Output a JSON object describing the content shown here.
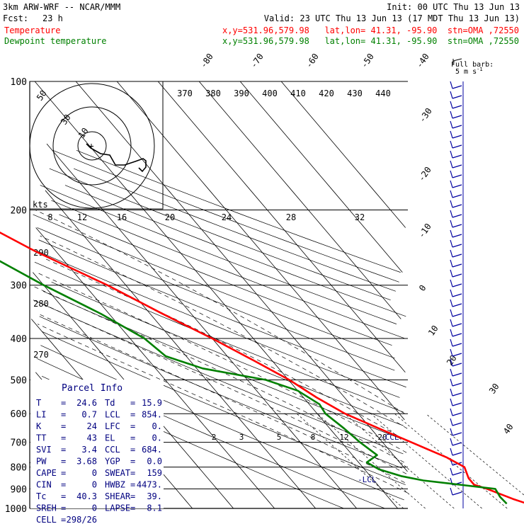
{
  "header": {
    "model": "3km ARW-WRF -- NCAR/MMM",
    "init": "Init: 00 UTC Thu 13 Jun 13",
    "fcst_label": "Fcst:",
    "fcst_value": "23 h",
    "valid": "Valid: 23 UTC Thu 13 Jun 13 (17 MDT Thu 13 Jun 13)",
    "temp_label": "Temperature",
    "temp_info": "x,y=531.96,579.98   lat,lon= 41.31, -95.90  stn=OMA ,72550",
    "dew_label": "Dewpoint temperature",
    "dew_info": "x,y=531.96,579.98   lat,lon= 41.31, -95.90  stn=OMA ,72550"
  },
  "barb_legend": {
    "line1": "Full barb:",
    "line2": "5 m s",
    "sup": "-1"
  },
  "colors": {
    "temperature": "#ff0000",
    "dewpoint": "#008000",
    "header_text": "#000000",
    "info_text": "#000080"
  },
  "parcel_info": {
    "title": "Parcel Info",
    "rows": [
      [
        "T",
        "=",
        "24.6",
        "Td",
        "=",
        "15.9"
      ],
      [
        "LI",
        "=",
        "0.7",
        "LCL",
        "=",
        "854."
      ],
      [
        "K",
        "=",
        "24",
        "LFC",
        "=",
        "0."
      ],
      [
        "TT",
        "=",
        "43",
        "EL",
        "=",
        "0."
      ],
      [
        "SVI",
        "=",
        "3.4",
        "CCL",
        "=",
        "684."
      ],
      [
        "PW",
        "=",
        "3.68",
        "YGP",
        "=",
        "0.0"
      ],
      [
        "CAPE",
        "=",
        "0",
        "SWEAT",
        "=",
        "159"
      ],
      [
        "CIN",
        "=",
        "0",
        "HWBZ",
        "=",
        "4473."
      ],
      [
        "Tc",
        "=",
        "40.3",
        "SHEAR",
        "=",
        "39."
      ],
      [
        "SREH",
        "=",
        "0",
        "LAPSE",
        "=",
        "8.1"
      ],
      [
        "CELL",
        "=",
        "298/26",
        "",
        "",
        ""
      ]
    ]
  },
  "annotations": {
    "ccl": "-CCL",
    "lcl": "-LCL"
  },
  "chart_data": {
    "type": "line",
    "diagram": "skew-T log-p",
    "y_axis": {
      "scale": "log",
      "ylim": [
        1000,
        100
      ],
      "ticks": [
        100,
        200,
        300,
        400,
        500,
        600,
        700,
        800,
        900,
        1000
      ]
    },
    "isotherm_labels": [
      "-80",
      "-70",
      "-60",
      "-50",
      "-40",
      "-30",
      "-20",
      "-10",
      "0",
      "10",
      "20",
      "30",
      "40"
    ],
    "theta_labels": [
      "370",
      "380",
      "390",
      "400",
      "410",
      "420",
      "430",
      "440"
    ],
    "theta_left_labels": [
      "290",
      "280",
      "270"
    ],
    "hodograph": {
      "units": "kts",
      "ring_labels": [
        "50",
        "30",
        "10"
      ],
      "upper_scale": [
        "8",
        "12",
        "16",
        "20",
        "24",
        "28",
        "32"
      ]
    },
    "mixing_ratio_labels": [
      "2",
      "3",
      "5",
      "8",
      "12",
      "20"
    ],
    "series": [
      {
        "name": "Temperature",
        "color": "#ff0000",
        "p": [
          1000,
          950,
          900,
          880,
          850,
          800,
          760,
          700,
          650,
          600,
          550,
          500,
          450,
          400,
          350,
          300,
          250,
          220,
          200,
          180,
          165,
          150,
          135,
          120,
          110,
          100
        ],
        "t": [
          25.0,
          20.0,
          15.8,
          13.5,
          13.5,
          14.8,
          12.5,
          7.0,
          2.0,
          -3.2,
          -6.8,
          -9.8,
          -14.5,
          -20.0,
          -27.0,
          -34.5,
          -45.0,
          -51.0,
          -56.0,
          -58.5,
          -57.0,
          -57.0,
          -58.5,
          -60.0,
          -60.0,
          -59.5
        ]
      },
      {
        "name": "Dewpoint temperature",
        "color": "#008000",
        "p": [
          975,
          940,
          900,
          880,
          860,
          840,
          810,
          780,
          750,
          700,
          650,
          600,
          570,
          530,
          500,
          470,
          440,
          400,
          350,
          300,
          250,
          200,
          175,
          165,
          160,
          152,
          140,
          130,
          120,
          110,
          100
        ],
        "td": [
          17.5,
          17.3,
          17.8,
          10.0,
          2.0,
          -2.5,
          -6.5,
          -8.0,
          -4.0,
          -5.5,
          -6.5,
          -8.0,
          -7.5,
          -10.0,
          -15.5,
          -28.5,
          -35.0,
          -36.5,
          -42.0,
          -50.0,
          -58.0,
          -68.0,
          -74.0,
          -67.0,
          -63.0,
          -65.0,
          -74.0,
          -80.0,
          -80.5,
          -80.0,
          -78.0
        ]
      }
    ]
  }
}
